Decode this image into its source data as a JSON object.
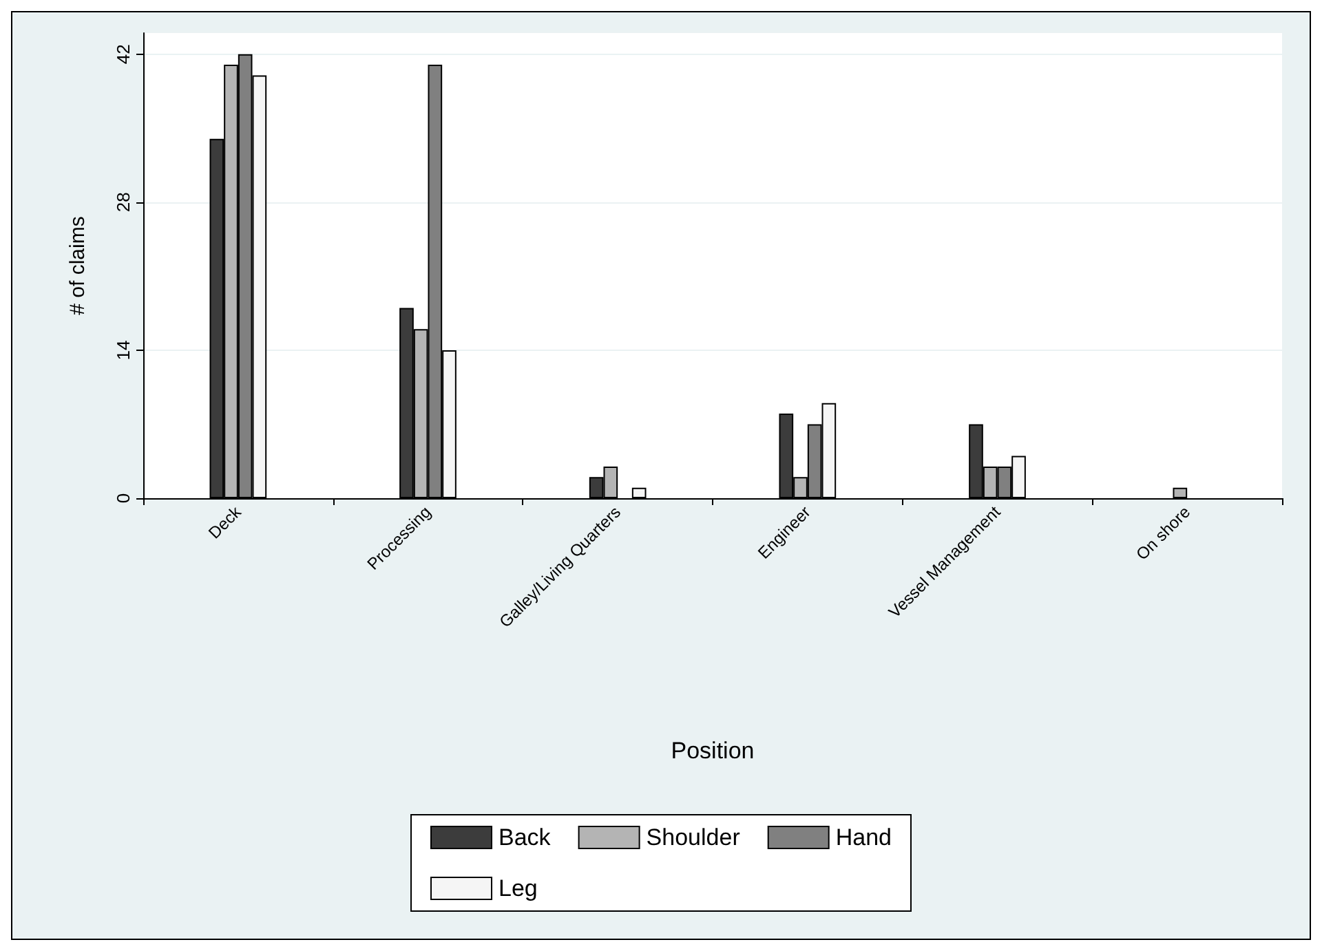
{
  "chart_data": {
    "type": "bar",
    "xlabel": "Position",
    "ylabel": "# of claims",
    "categories": [
      "Deck",
      "Processing",
      "Galley/Living Quarters",
      "Engineer",
      "Vessel Management",
      "On shore"
    ],
    "series": [
      {
        "name": "Back",
        "color": "#3c3c3c",
        "values": [
          34,
          18,
          2,
          8,
          7,
          0
        ]
      },
      {
        "name": "Shoulder",
        "color": "#b4b4b4",
        "values": [
          41,
          16,
          3,
          2,
          3,
          1
        ]
      },
      {
        "name": "Hand",
        "color": "#808080",
        "values": [
          42,
          41,
          0,
          7,
          3,
          0
        ]
      },
      {
        "name": "Leg",
        "color": "#f5f5f5",
        "values": [
          40,
          14,
          1,
          9,
          4,
          0
        ]
      }
    ],
    "ylim": [
      0,
      44
    ],
    "yticks": [
      0,
      14,
      28,
      42
    ],
    "grid": "y",
    "legend": "bottom"
  }
}
